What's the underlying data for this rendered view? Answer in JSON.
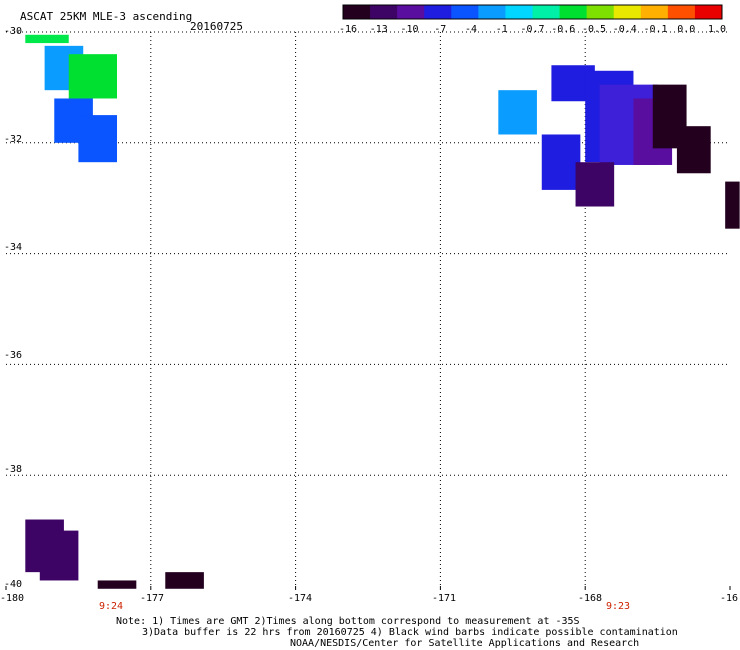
{
  "header": {
    "title": "ASCAT 25KM MLE-3 ascending",
    "date": "20160725"
  },
  "colorbar": {
    "labels": [
      "-16",
      "-13",
      "-10",
      "-7",
      "-4",
      "-1",
      "-0.7",
      "-0.6",
      "-0.5",
      "-0.4",
      "-0.1",
      "0.0",
      "1.0"
    ],
    "colors": [
      "#22001e",
      "#3d0466",
      "#5a0ea0",
      "#1f1de0",
      "#0a55ff",
      "#0a9cff",
      "#00d6ff",
      "#00f0a8",
      "#00e030",
      "#7ee000",
      "#e8e800",
      "#ffb000",
      "#ff5000",
      "#e80000"
    ]
  },
  "axes": {
    "y_ticks": [
      "-30",
      "-32",
      "-34",
      "-36",
      "-38",
      "-40"
    ],
    "x_ticks": [
      "-180",
      "-177",
      "-174",
      "-171",
      "-168",
      "-16"
    ],
    "times": [
      "9:24",
      "9:23"
    ]
  },
  "map_data": {
    "lon_range": [
      -180,
      -165
    ],
    "lat_range": [
      -40,
      -30
    ],
    "cells": [
      {
        "lon0": -179.6,
        "lon1": -178.7,
        "lat0": -30.2,
        "lat1": -30.05,
        "color": "#00e84a"
      },
      {
        "lon0": -179.2,
        "lon1": -178.4,
        "lat0": -31.05,
        "lat1": -30.25,
        "color": "#0a9cff"
      },
      {
        "lon0": -178.7,
        "lon1": -177.7,
        "lat0": -31.2,
        "lat1": -30.4,
        "color": "#00e030"
      },
      {
        "lon0": -179.0,
        "lon1": -178.2,
        "lat0": -32.0,
        "lat1": -31.2,
        "color": "#0a55ff"
      },
      {
        "lon0": -178.5,
        "lon1": -177.7,
        "lat0": -32.35,
        "lat1": -31.5,
        "color": "#0a55ff"
      },
      {
        "lon0": -169.8,
        "lon1": -169.0,
        "lat0": -31.85,
        "lat1": -31.05,
        "color": "#0a9cff"
      },
      {
        "lon0": -168.7,
        "lon1": -167.8,
        "lat0": -31.25,
        "lat1": -30.6,
        "color": "#1f1de0"
      },
      {
        "lon0": -168.0,
        "lon1": -167.0,
        "lat0": -32.35,
        "lat1": -30.7,
        "color": "#1f1de0"
      },
      {
        "lon0": -167.7,
        "lon1": -166.5,
        "lat0": -32.4,
        "lat1": -30.95,
        "color": "#3d20d8"
      },
      {
        "lon0": -167.0,
        "lon1": -166.2,
        "lat0": -32.4,
        "lat1": -31.2,
        "color": "#5a0ea0"
      },
      {
        "lon0": -166.6,
        "lon1": -165.9,
        "lat0": -32.1,
        "lat1": -30.95,
        "color": "#22001e"
      },
      {
        "lon0": -166.1,
        "lon1": -165.4,
        "lat0": -32.55,
        "lat1": -31.7,
        "color": "#22001e"
      },
      {
        "lon0": -168.9,
        "lon1": -168.1,
        "lat0": -32.85,
        "lat1": -31.85,
        "color": "#1f1de0"
      },
      {
        "lon0": -168.2,
        "lon1": -167.4,
        "lat0": -33.15,
        "lat1": -32.35,
        "color": "#3d0466"
      },
      {
        "lon0": -165.1,
        "lon1": -164.8,
        "lat0": -33.55,
        "lat1": -32.7,
        "color": "#22001e"
      },
      {
        "lon0": -179.6,
        "lon1": -178.8,
        "lat0": -39.75,
        "lat1": -38.8,
        "color": "#3d0466"
      },
      {
        "lon0": -179.3,
        "lon1": -178.5,
        "lat0": -39.9,
        "lat1": -39.0,
        "color": "#3d0466"
      },
      {
        "lon0": -178.1,
        "lon1": -177.3,
        "lat0": -40.05,
        "lat1": -39.9,
        "color": "#22001e"
      },
      {
        "lon0": -176.7,
        "lon1": -175.9,
        "lat0": -40.05,
        "lat1": -39.75,
        "color": "#22001e"
      }
    ]
  },
  "footer": {
    "note1": "Note: 1) Times are GMT 2)Times along bottom correspond to measurement at -35S",
    "note2": "3)Data buffer is 22 hrs from 20160725 4) Black wind barbs indicate possible contamination",
    "credit": "NOAA/NESDIS/Center for Satellite Applications and Research"
  }
}
